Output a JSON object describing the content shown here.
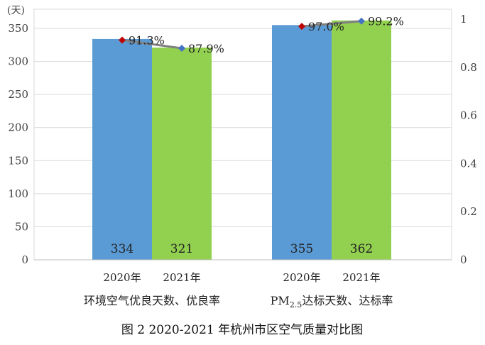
{
  "chart_data": {
    "type": "bar",
    "y_unit_label": "(天)",
    "ylim": [
      0,
      350
    ],
    "y_ticks": [
      "0",
      "50",
      "100",
      "150",
      "200",
      "250",
      "300",
      "350"
    ],
    "y2lim": [
      0,
      1
    ],
    "y2_ticks": [
      "0",
      "0.2",
      "0.4",
      "0.6",
      "0.8",
      "1"
    ],
    "groups": [
      {
        "label": "环境空气优良天数、优良率",
        "bars": [
          {
            "category": "2020年",
            "value": 334,
            "value_label": "334",
            "rate": 0.913,
            "rate_label": "91.3%",
            "color": "#5b9bd5",
            "marker_color": "#c00000"
          },
          {
            "category": "2021年",
            "value": 321,
            "value_label": "321",
            "rate": 0.879,
            "rate_label": "87.9%",
            "color": "#92d050",
            "marker_color": "#4472c4"
          }
        ]
      },
      {
        "label_main": "PM",
        "label_sub": "2.5",
        "label_rest": "达标天数、达标率",
        "bars": [
          {
            "category": "2020年",
            "value": 355,
            "value_label": "355",
            "rate": 0.97,
            "rate_label": "97.0%",
            "color": "#5b9bd5",
            "marker_color": "#c00000"
          },
          {
            "category": "2021年",
            "value": 362,
            "value_label": "362",
            "rate": 0.992,
            "rate_label": "99.2%",
            "color": "#92d050",
            "marker_color": "#4472c4"
          }
        ]
      }
    ],
    "line_color": "#808080",
    "caption": "图 2   2020-2021 年杭州市区空气质量对比图"
  }
}
